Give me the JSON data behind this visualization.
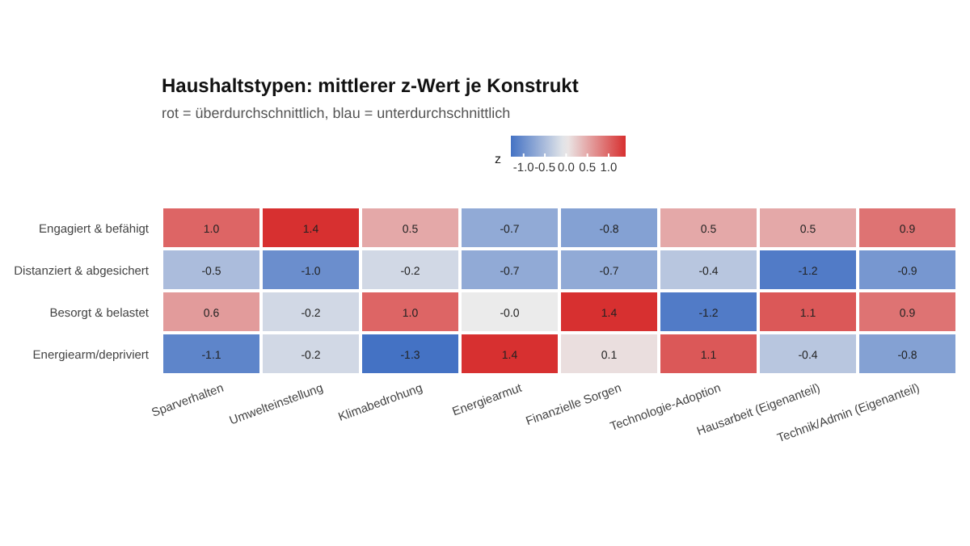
{
  "chart_data": {
    "type": "heatmap",
    "title": "Haushaltstypen: mittlerer z-Wert je Konstrukt",
    "subtitle": "rot = überdurchschnittlich, blau = unterdurchschnittlich",
    "clabel": "z",
    "categories": [
      "Sparverhalten",
      "Umwelteinstellung",
      "Klimabedrohung",
      "Energiearmut",
      "Finanzielle Sorgen",
      "Technologie-Adoption",
      "Hausarbeit (Eigenanteil)",
      "Technik/Admin (Eigenanteil)"
    ],
    "y_categories": [
      "Engagiert & befähigt",
      "Distanziert & abgesichert",
      "Besorgt & belastet",
      "Energiearm/depriviert"
    ],
    "cells": [
      [
        1.0,
        1.4,
        0.5,
        -0.7,
        -0.8,
        0.5,
        0.5,
        0.9
      ],
      [
        -0.5,
        -1.0,
        -0.2,
        -0.7,
        -0.7,
        -0.4,
        -1.2,
        -0.9
      ],
      [
        0.6,
        -0.2,
        1.0,
        0.0,
        1.4,
        -1.2,
        1.1,
        0.9
      ],
      [
        -1.1,
        -0.2,
        -1.3,
        1.4,
        0.1,
        1.1,
        -0.4,
        -0.8
      ]
    ],
    "cell_labels": [
      [
        "1.0",
        "1.4",
        "0.5",
        "-0.7",
        "-0.8",
        "0.5",
        "0.5",
        "0.9"
      ],
      [
        "-0.5",
        "-1.0",
        "-0.2",
        "-0.7",
        "-0.7",
        "-0.4",
        "-1.2",
        "-0.9"
      ],
      [
        "0.6",
        "-0.2",
        "1.0",
        "-0.0",
        "1.4",
        "-1.2",
        "1.1",
        "0.9"
      ],
      [
        "-1.1",
        "-0.2",
        "-1.3",
        "1.4",
        "0.1",
        "1.1",
        "-0.4",
        "-0.8"
      ]
    ],
    "clim": [
      -1.3,
      1.4
    ],
    "cticks": [
      {
        "value": -1.0,
        "label": "-1.0"
      },
      {
        "value": -0.5,
        "label": "-0.5"
      },
      {
        "value": 0,
        "label": "0.0"
      },
      {
        "value": 0.5,
        "label": "0.5"
      },
      {
        "value": 1.0,
        "label": "1.0"
      }
    ],
    "colors": [
      "#4472c4",
      "#ebebeb",
      "#d73030"
    ]
  }
}
